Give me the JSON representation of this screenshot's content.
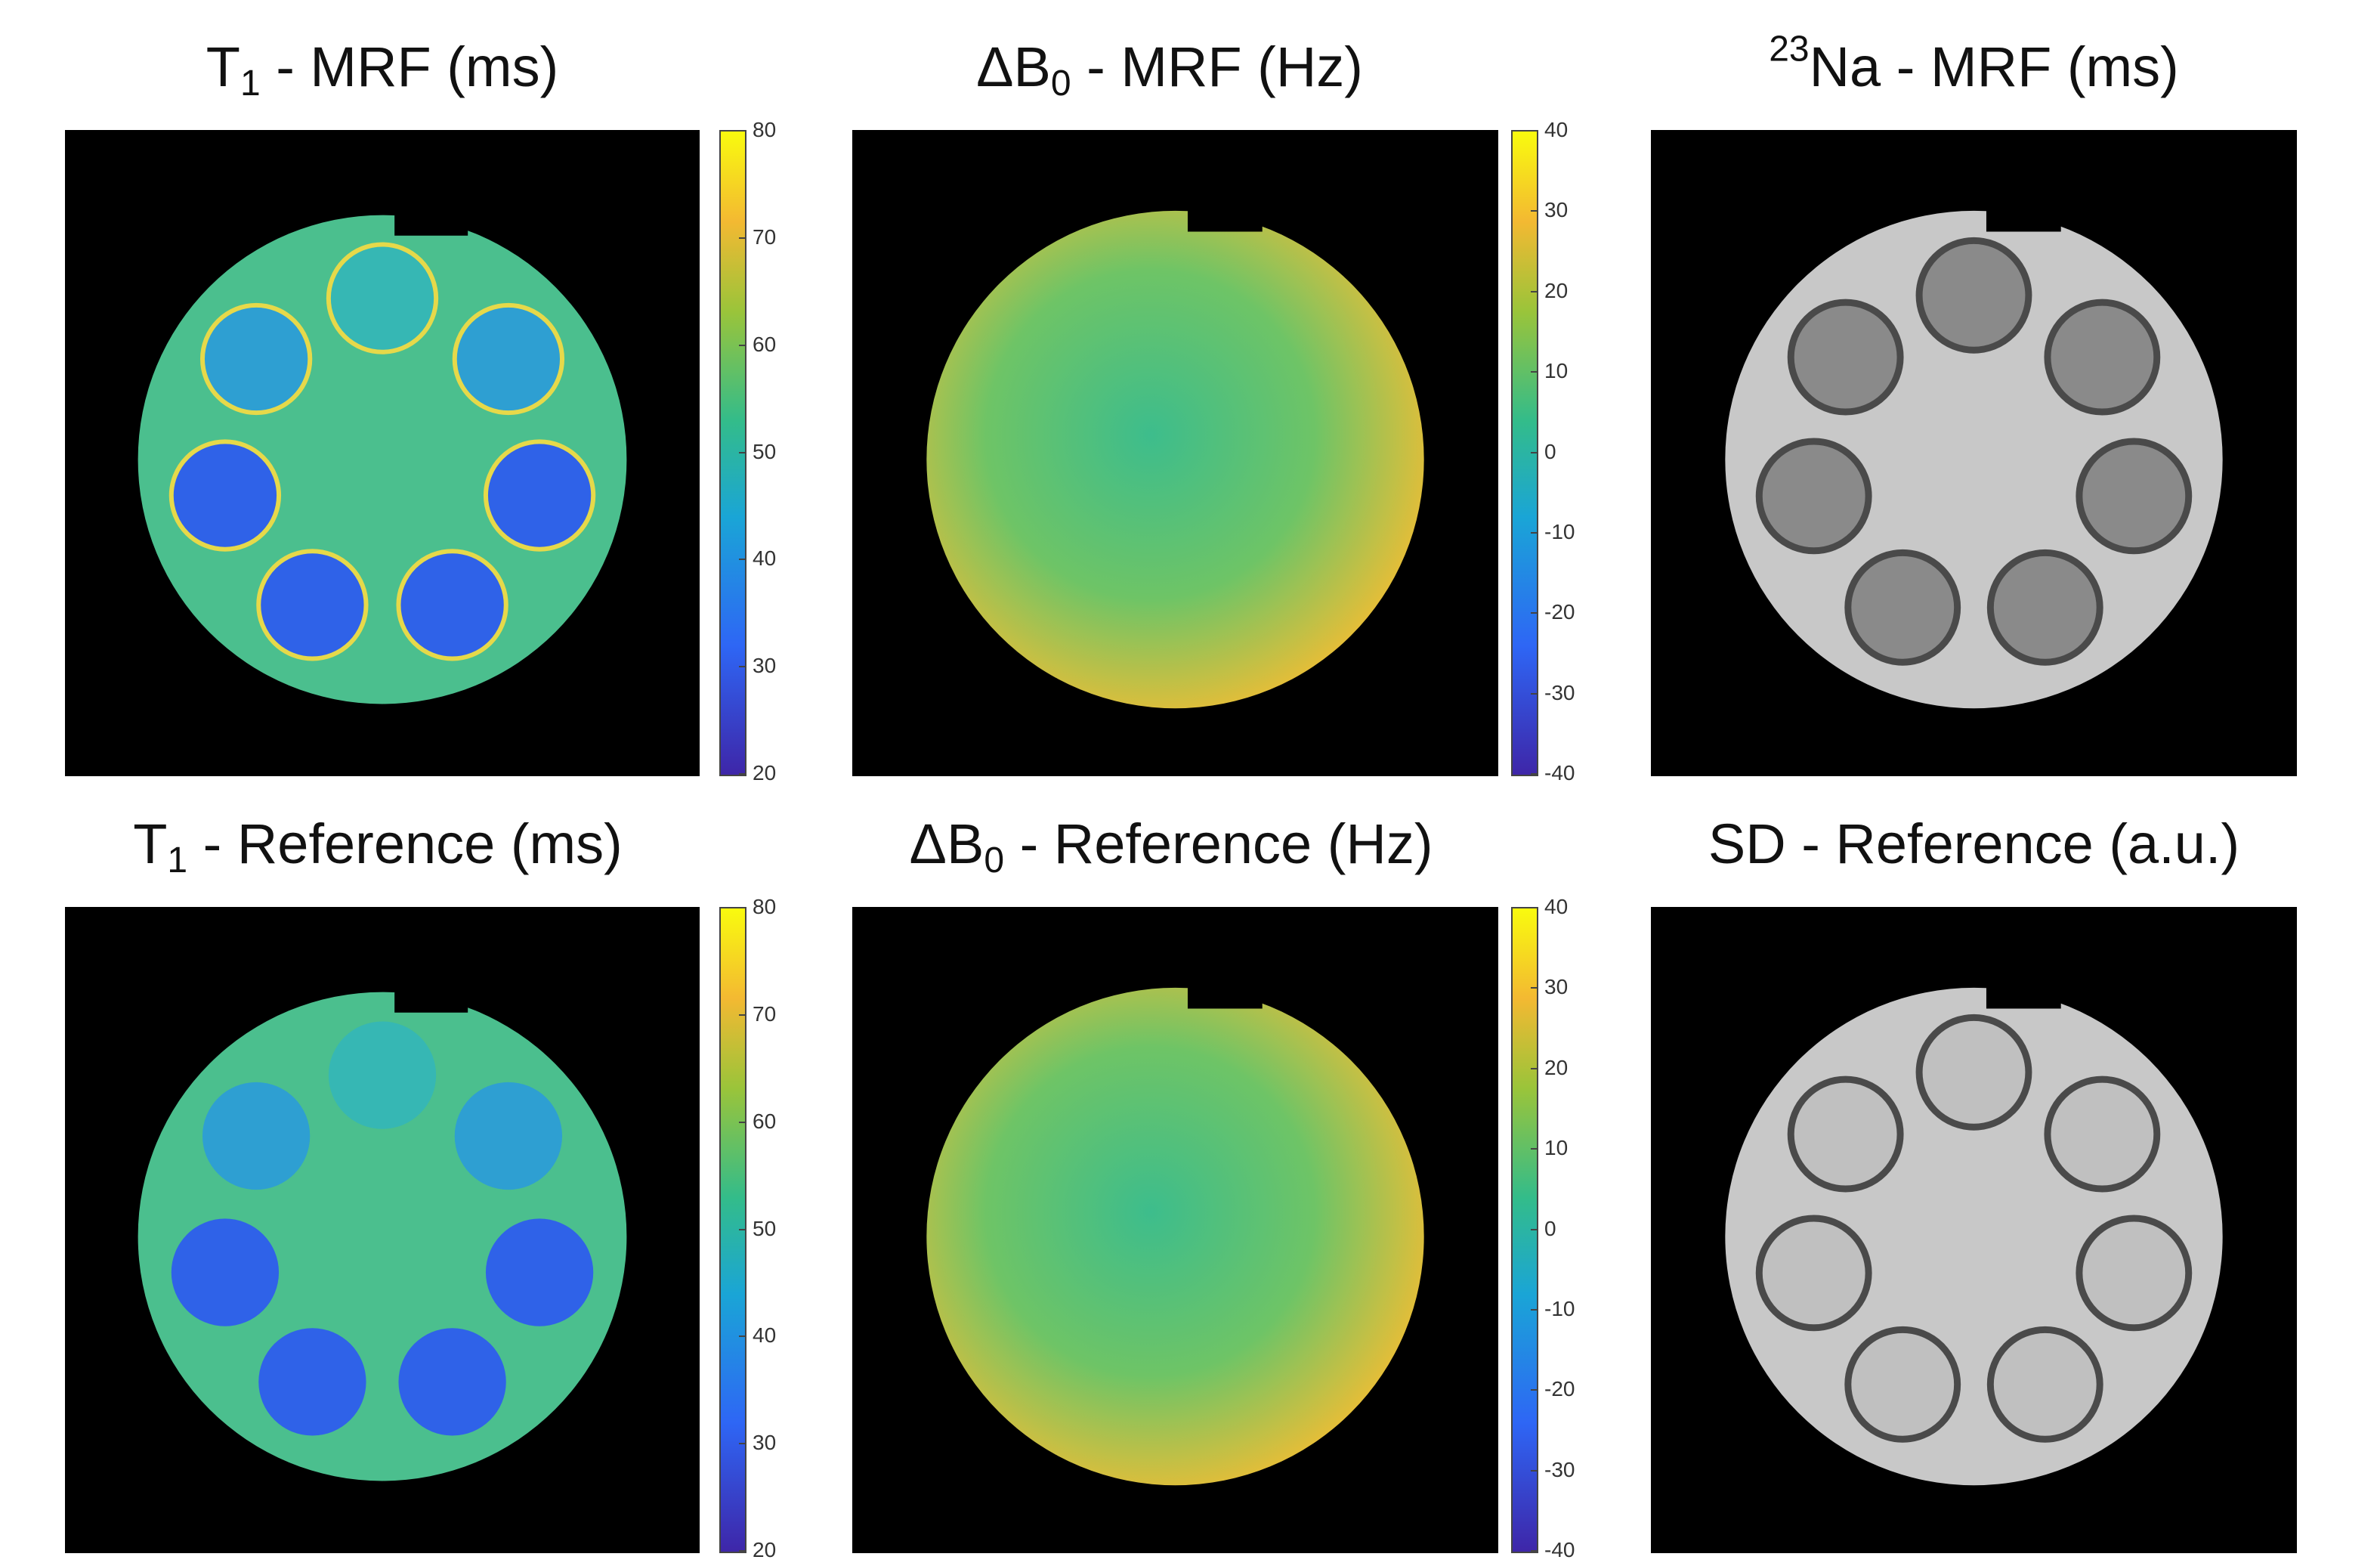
{
  "panels": [
    {
      "id": "t1-mrf",
      "title_main": "T",
      "title_sub": "1",
      "title_rest": " - MRF (ms)",
      "kind": "t1",
      "smooth": true,
      "colorbar": {
        "min": 20,
        "max": 80,
        "ticks": [
          "80",
          "70",
          "60",
          "50",
          "40",
          "30",
          "20"
        ]
      }
    },
    {
      "id": "db0-mrf",
      "title_main": "ΔB",
      "title_sub": "0",
      "title_rest": " - MRF (Hz)",
      "kind": "b0",
      "smooth": true,
      "colorbar": {
        "min": -40,
        "max": 40,
        "ticks": [
          "40",
          "30",
          "20",
          "10",
          "0",
          "-10",
          "-20",
          "-30",
          "-40"
        ]
      }
    },
    {
      "id": "na-mrf",
      "title_sup": "23",
      "title_main": "Na",
      "title_rest": " - MRF (ms)",
      "kind": "gray"
    },
    {
      "id": "t1-ref",
      "title_main": "T",
      "title_sub": "1",
      "title_rest": " - Reference (ms)",
      "kind": "t1",
      "smooth": false,
      "colorbar": {
        "min": 20,
        "max": 80,
        "ticks": [
          "80",
          "70",
          "60",
          "50",
          "40",
          "30",
          "20"
        ]
      }
    },
    {
      "id": "db0-ref",
      "title_main": "ΔB",
      "title_sub": "0",
      "title_rest": " - Reference (Hz)",
      "kind": "b0",
      "smooth": false,
      "colorbar": {
        "min": -40,
        "max": 40,
        "ticks": [
          "40",
          "30",
          "20",
          "10",
          "0",
          "-10",
          "-20",
          "-30",
          "-40"
        ]
      }
    },
    {
      "id": "sd-ref",
      "title_main": "SD - Reference (a.u.)",
      "kind": "gray"
    }
  ],
  "colors": {
    "background": "#000000",
    "t1_tube": "#2f62e8",
    "t1_fill": "#4bbf8e",
    "b0_center": "#3dbd8c",
    "b0_edge": "#f2bd33",
    "gray_fill": "#c8c8c8",
    "gray_ring": "#4a4a4a"
  }
}
